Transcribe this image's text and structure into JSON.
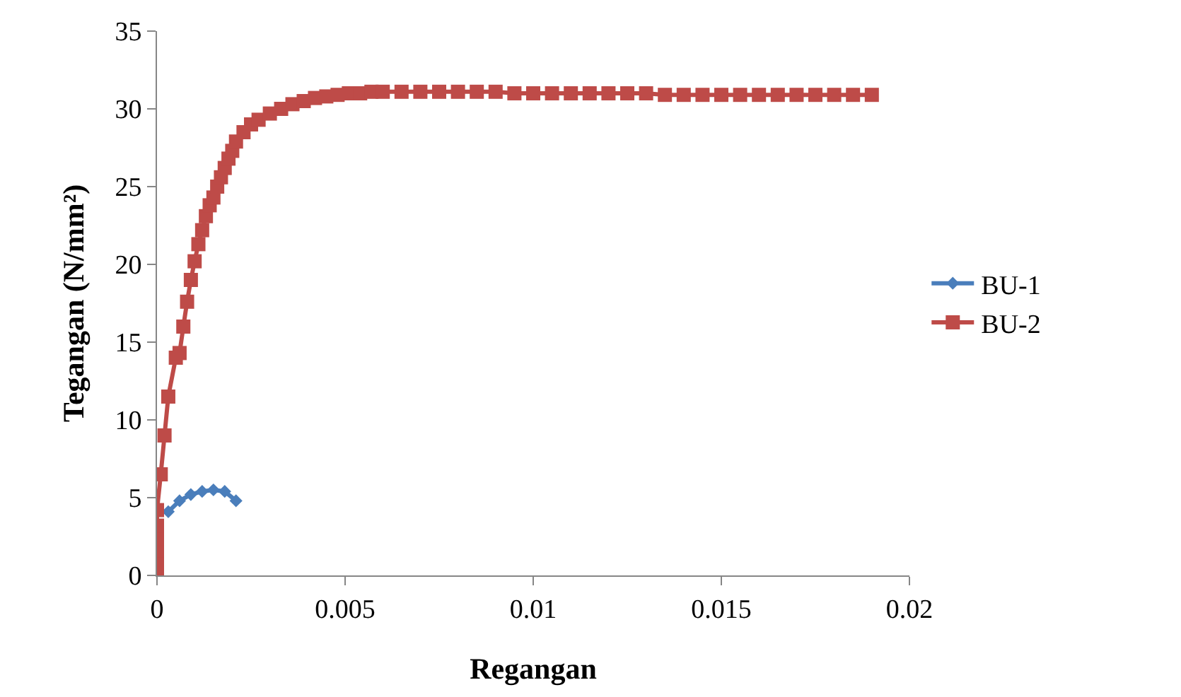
{
  "chart_data": {
    "type": "line",
    "xlabel": "Regangan",
    "ylabel": "Tegangan (N/mm²)",
    "xlim": [
      0,
      0.02
    ],
    "xticks": [
      0,
      0.005,
      0.01,
      0.015,
      0.02
    ],
    "ylim": [
      0,
      35
    ],
    "yticks": [
      0,
      5,
      10,
      15,
      20,
      25,
      30,
      35
    ],
    "grid": false,
    "legend": "right",
    "line_style": "solid",
    "series": [
      {
        "name": "BU-1",
        "color": "#4a7ebb",
        "marker": "diamond",
        "x": [
          0.0003,
          0.0006,
          0.0009,
          0.0012,
          0.0015,
          0.0018,
          0.0021
        ],
        "values": [
          4.1,
          4.8,
          5.2,
          5.4,
          5.5,
          5.4,
          4.8
        ]
      },
      {
        "name": "BU-2",
        "color": "#be4b48",
        "marker": "square",
        "x": [
          0,
          0,
          0,
          0,
          0,
          0,
          0.0001,
          0.0002,
          0.0003,
          0.0005,
          0.0006,
          0.0007,
          0.0008,
          0.0009,
          0.001,
          0.0011,
          0.0012,
          0.0013,
          0.0014,
          0.0015,
          0.0016,
          0.0017,
          0.0018,
          0.0019,
          0.002,
          0.0021,
          0.0023,
          0.0025,
          0.0027,
          0.003,
          0.0033,
          0.0036,
          0.0039,
          0.0042,
          0.0045,
          0.0048,
          0.0051,
          0.0054,
          0.0057,
          0.006,
          0.0065,
          0.007,
          0.0075,
          0.008,
          0.0085,
          0.009,
          0.0095,
          0.01,
          0.0105,
          0.011,
          0.0115,
          0.012,
          0.0125,
          0.013,
          0.0135,
          0.014,
          0.0145,
          0.015,
          0.0155,
          0.016,
          0.0165,
          0.017,
          0.0175,
          0.018,
          0.0185,
          0.019
        ],
        "values": [
          0,
          0.8,
          1.6,
          2.4,
          3.2,
          4.2,
          6.5,
          9,
          11.5,
          14,
          14.3,
          16,
          17.6,
          19,
          20.2,
          21.3,
          22.2,
          23.1,
          23.8,
          24.3,
          25,
          25.6,
          26.2,
          26.8,
          27.3,
          27.9,
          28.5,
          29.0,
          29.3,
          29.7,
          30.0,
          30.3,
          30.5,
          30.7,
          30.8,
          30.9,
          31.0,
          31.0,
          31.1,
          31.1,
          31.1,
          31.1,
          31.1,
          31.1,
          31.1,
          31.1,
          31.0,
          31.0,
          31.0,
          31.0,
          31.0,
          31.0,
          31.0,
          31.0,
          30.9,
          30.9,
          30.9,
          30.9,
          30.9,
          30.9,
          30.9,
          30.9,
          30.9,
          30.9,
          30.9,
          30.9
        ]
      }
    ]
  }
}
